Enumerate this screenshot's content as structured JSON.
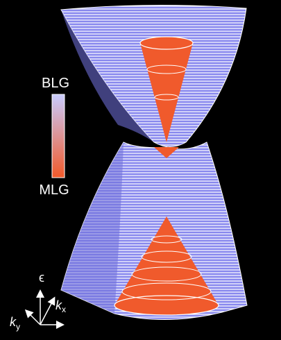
{
  "colorbar": {
    "top_label": "BLG",
    "bottom_label": "MLG"
  },
  "axes": {
    "energy": "ϵ",
    "kx": {
      "base": "k",
      "sub": "x"
    },
    "ky": {
      "base": "k",
      "sub": "y"
    }
  }
}
